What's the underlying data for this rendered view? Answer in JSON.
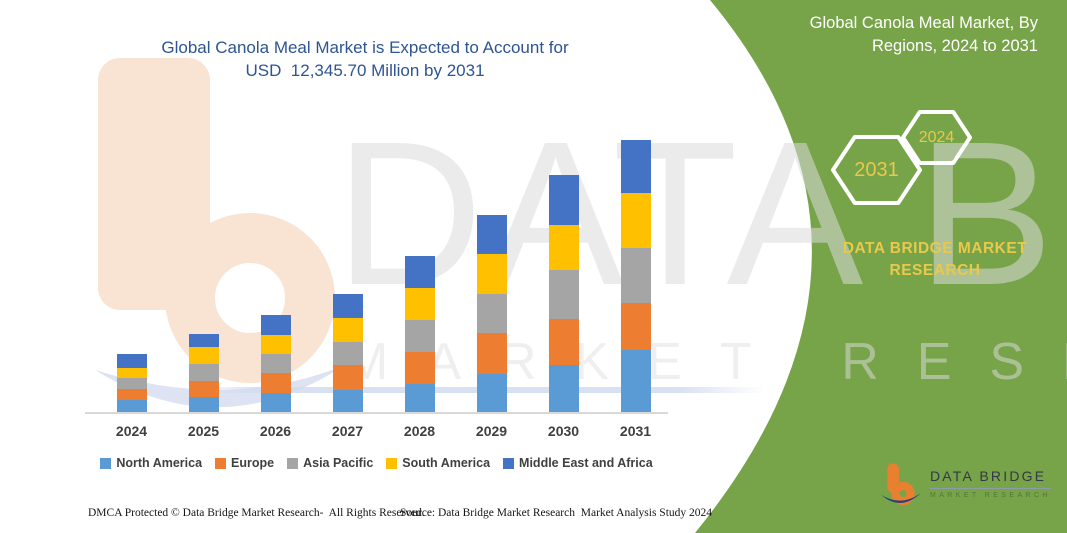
{
  "header": {
    "title_line1": "Global Canola Meal Market is Expected to Account for",
    "title_line2": "USD  12,345.70 Million by 2031",
    "title_color": "#2D5493"
  },
  "right_panel": {
    "bg_color": "#77A349",
    "accent_color": "#E8C94B",
    "title_line1": "Global Canola Meal Market, By",
    "title_line2": "Regions, 2024 to 2031",
    "hexagon_large_label": "2031",
    "hexagon_small_label": "2024",
    "brand_line1": "DATA BRIDGE MARKET",
    "brand_line2": "RESEARCH"
  },
  "chart_data": {
    "type": "bar",
    "stacked": true,
    "title": "Global Canola Meal Market, By Regions, 2024 to 2031",
    "unit": "USD Million",
    "projected_total_2031": "12,345.70",
    "categories": [
      "2024",
      "2025",
      "2026",
      "2027",
      "2028",
      "2029",
      "2030",
      "2031"
    ],
    "series": [
      {
        "name": "North America",
        "color": "#5B9BD5",
        "values": [
          574,
          709,
          903,
          1052,
          1324,
          1762,
          2155,
          2859
        ]
      },
      {
        "name": "Europe",
        "color": "#ED7D31",
        "values": [
          529,
          723,
          903,
          1129,
          1432,
          1852,
          2110,
          2110
        ]
      },
      {
        "name": "Asia Pacific",
        "color": "#A5A5A5",
        "values": [
          483,
          781,
          858,
          1025,
          1459,
          1762,
          2182,
          2484
        ]
      },
      {
        "name": "South America",
        "color": "#FFC000",
        "values": [
          452,
          754,
          872,
          1084,
          1432,
          1807,
          2064,
          2484
        ]
      },
      {
        "name": "Middle East and Africa",
        "color": "#4472C4",
        "values": [
          646,
          601,
          903,
          1084,
          1432,
          1775,
          2227,
          2408
        ]
      }
    ],
    "ylim": [
      0,
      12600
    ],
    "gridlines": false,
    "legend_position": "bottom",
    "legend_text_color": "#404040"
  },
  "watermark": {
    "wordmark": "DATA BRIDGE",
    "letters_row": "MARKET RESEARCH"
  },
  "corner_logo": {
    "brand": "DATA BRIDGE",
    "sub": "MARKET RESEARCH"
  },
  "footer": {
    "dmca": "DMCA Protected © Data Bridge Market Research-  All Rights Reserved.",
    "source": "Source: Data Bridge Market Research  Market Analysis Study 2024"
  }
}
